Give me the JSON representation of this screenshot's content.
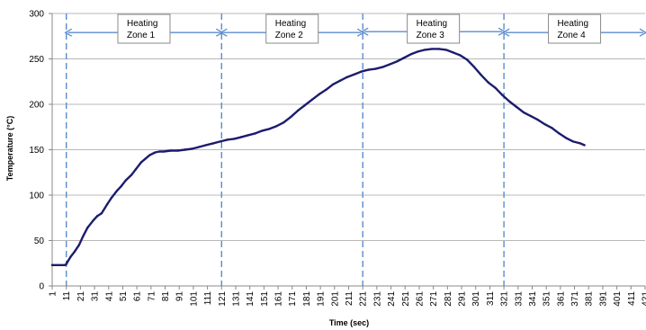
{
  "chart_data": {
    "type": "line",
    "title": "",
    "xlabel": "Time (sec)",
    "ylabel": "Temperature (°C)",
    "xlim": [
      1,
      421
    ],
    "ylim": [
      0,
      300
    ],
    "y_ticks": [
      "0",
      "50",
      "100",
      "150",
      "200",
      "250",
      "300"
    ],
    "x_ticks": [
      "1",
      "11",
      "21",
      "31",
      "41",
      "51",
      "61",
      "71",
      "81",
      "91",
      "101",
      "111",
      "121",
      "131",
      "141",
      "151",
      "161",
      "171",
      "181",
      "191",
      "201",
      "211",
      "221",
      "231",
      "241",
      "251",
      "261",
      "271",
      "281",
      "291",
      "301",
      "311",
      "321",
      "331",
      "341",
      "351",
      "361",
      "371",
      "381",
      "391",
      "401",
      "411",
      "421"
    ],
    "grid": "horizontal",
    "series": [
      {
        "color": "#1c1c6e",
        "points": [
          [
            1,
            23
          ],
          [
            5,
            23
          ],
          [
            10,
            23
          ],
          [
            11,
            24
          ],
          [
            12,
            27
          ],
          [
            14,
            32
          ],
          [
            17,
            38
          ],
          [
            20,
            45
          ],
          [
            23,
            55
          ],
          [
            26,
            64
          ],
          [
            30,
            72
          ],
          [
            33,
            77
          ],
          [
            36,
            80
          ],
          [
            40,
            90
          ],
          [
            43,
            97
          ],
          [
            47,
            105
          ],
          [
            50,
            110
          ],
          [
            53,
            116
          ],
          [
            57,
            122
          ],
          [
            60,
            128
          ],
          [
            64,
            136
          ],
          [
            67,
            140
          ],
          [
            70,
            144
          ],
          [
            74,
            147
          ],
          [
            77,
            148
          ],
          [
            80,
            148
          ],
          [
            85,
            149
          ],
          [
            90,
            149
          ],
          [
            95,
            150
          ],
          [
            100,
            151
          ],
          [
            105,
            153
          ],
          [
            110,
            155
          ],
          [
            115,
            157
          ],
          [
            120,
            159
          ],
          [
            125,
            161
          ],
          [
            130,
            162
          ],
          [
            135,
            164
          ],
          [
            140,
            166
          ],
          [
            145,
            168
          ],
          [
            150,
            171
          ],
          [
            155,
            173
          ],
          [
            160,
            176
          ],
          [
            165,
            180
          ],
          [
            170,
            186
          ],
          [
            175,
            193
          ],
          [
            180,
            199
          ],
          [
            185,
            205
          ],
          [
            190,
            211
          ],
          [
            195,
            216
          ],
          [
            200,
            222
          ],
          [
            205,
            226
          ],
          [
            210,
            230
          ],
          [
            215,
            233
          ],
          [
            220,
            236
          ],
          [
            225,
            238
          ],
          [
            230,
            239
          ],
          [
            235,
            241
          ],
          [
            240,
            244
          ],
          [
            245,
            247
          ],
          [
            250,
            251
          ],
          [
            255,
            255
          ],
          [
            260,
            258
          ],
          [
            265,
            260
          ],
          [
            270,
            261
          ],
          [
            275,
            261
          ],
          [
            280,
            260
          ],
          [
            285,
            257
          ],
          [
            290,
            254
          ],
          [
            295,
            249
          ],
          [
            300,
            241
          ],
          [
            305,
            232
          ],
          [
            310,
            224
          ],
          [
            315,
            218
          ],
          [
            320,
            210
          ],
          [
            325,
            203
          ],
          [
            330,
            197
          ],
          [
            335,
            191
          ],
          [
            340,
            187
          ],
          [
            345,
            183
          ],
          [
            350,
            178
          ],
          [
            355,
            174
          ],
          [
            360,
            168
          ],
          [
            365,
            163
          ],
          [
            370,
            159
          ],
          [
            375,
            157
          ],
          [
            378,
            155
          ]
        ]
      }
    ],
    "zone_boundaries": [
      11,
      121,
      221,
      321
    ],
    "zones": [
      {
        "line1": "Heating",
        "line2": "Zone 1",
        "from": 11,
        "to": 121
      },
      {
        "line1": "Heating",
        "line2": "Zone 2",
        "from": 121,
        "to": 221
      },
      {
        "line1": "Heating",
        "line2": "Zone 3",
        "from": 221,
        "to": 321
      },
      {
        "line1": "Heating",
        "line2": "Zone 4",
        "from": 321,
        "to": 421
      }
    ],
    "zone_arrow_y": 279
  },
  "colors": {
    "line": "#1c1c6e",
    "zone_divider": "#5b8ccd",
    "arrow": "#5b8ccd",
    "grid": "#b8b8b8"
  }
}
